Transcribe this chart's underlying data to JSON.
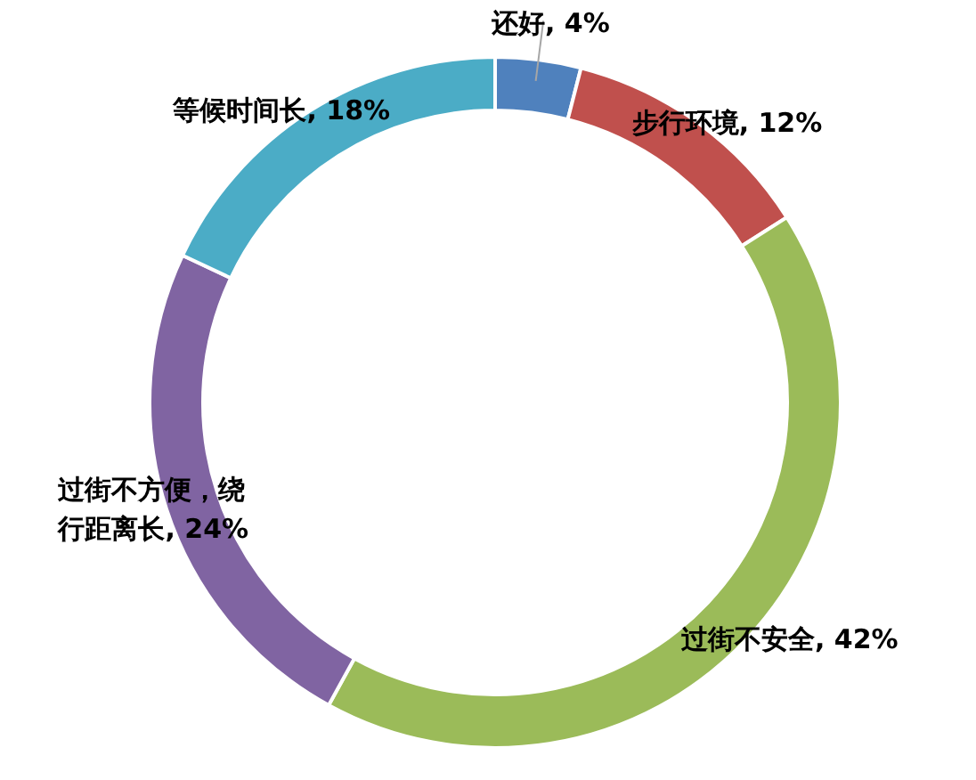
{
  "chart_data": {
    "type": "donut",
    "categories": [
      "还好",
      "步行环境",
      "过街不安全",
      "过街不方便，绕行距离长",
      "等候时间长"
    ],
    "values": [
      4,
      12,
      42,
      24,
      18
    ],
    "colors": [
      "#4f81bd",
      "#c0504d",
      "#9bbb59",
      "#8064a2",
      "#4bacc6"
    ],
    "value_labels": [
      ", 4%",
      ", 12%",
      ", 42%",
      ", 24%",
      ", 18%"
    ],
    "legend": false
  }
}
